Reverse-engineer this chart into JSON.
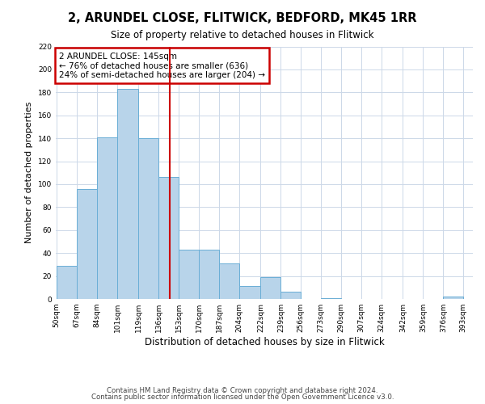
{
  "title": "2, ARUNDEL CLOSE, FLITWICK, BEDFORD, MK45 1RR",
  "subtitle": "Size of property relative to detached houses in Flitwick",
  "xlabel": "Distribution of detached houses by size in Flitwick",
  "ylabel": "Number of detached properties",
  "bar_edges": [
    50,
    67,
    84,
    101,
    119,
    136,
    153,
    170,
    187,
    204,
    222,
    239,
    256,
    273,
    290,
    307,
    324,
    342,
    359,
    376,
    393
  ],
  "bar_heights": [
    29,
    96,
    141,
    183,
    140,
    106,
    43,
    43,
    31,
    11,
    19,
    6,
    0,
    1,
    0,
    0,
    0,
    0,
    0,
    2
  ],
  "tick_labels": [
    "50sqm",
    "67sqm",
    "84sqm",
    "101sqm",
    "119sqm",
    "136sqm",
    "153sqm",
    "170sqm",
    "187sqm",
    "204sqm",
    "222sqm",
    "239sqm",
    "256sqm",
    "273sqm",
    "290sqm",
    "307sqm",
    "324sqm",
    "342sqm",
    "359sqm",
    "376sqm",
    "393sqm"
  ],
  "bar_color": "#b8d4ea",
  "bar_edge_color": "#6aaed6",
  "vline_x": 145,
  "vline_color": "#cc0000",
  "annotation_line1": "2 ARUNDEL CLOSE: 145sqm",
  "annotation_line2": "← 76% of detached houses are smaller (636)",
  "annotation_line3": "24% of semi-detached houses are larger (204) →",
  "annotation_box_color": "#cc0000",
  "ylim": [
    0,
    220
  ],
  "yticks": [
    0,
    20,
    40,
    60,
    80,
    100,
    120,
    140,
    160,
    180,
    200,
    220
  ],
  "footer_line1": "Contains HM Land Registry data © Crown copyright and database right 2024.",
  "footer_line2": "Contains public sector information licensed under the Open Government Licence v3.0.",
  "bg_color": "#ffffff",
  "grid_color": "#ccd8e8",
  "title_fontsize": 10.5,
  "subtitle_fontsize": 8.5,
  "ylabel_fontsize": 8,
  "xlabel_fontsize": 8.5,
  "tick_fontsize": 6.5,
  "footer_fontsize": 6.2
}
